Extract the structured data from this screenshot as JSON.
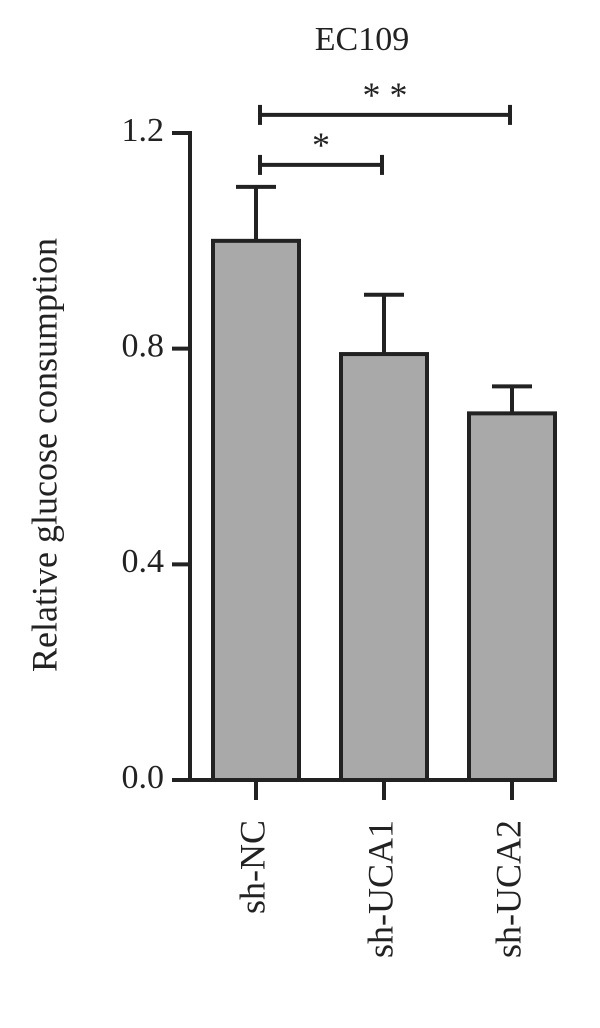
{
  "chart_data": {
    "type": "bar",
    "title": "EC109",
    "ylabel": "Relative glucose consumption",
    "categories": [
      "sh-NC",
      "sh-UCA1",
      "sh-UCA2"
    ],
    "values": [
      1.0,
      0.79,
      0.68
    ],
    "errors": [
      0.1,
      0.11,
      0.05
    ],
    "color": "#a9a9a9",
    "ylim": [
      0,
      1.2
    ],
    "yticks": [
      {
        "value": 0,
        "label": "0.0"
      },
      0.4,
      0.8,
      1.2
    ],
    "grid": false,
    "annotations": [
      {
        "text": "*",
        "between": [
          "sh-NC",
          "sh-UCA1"
        ]
      },
      {
        "text": "* *",
        "between": [
          "sh-NC",
          "sh-UCA2"
        ]
      }
    ]
  }
}
